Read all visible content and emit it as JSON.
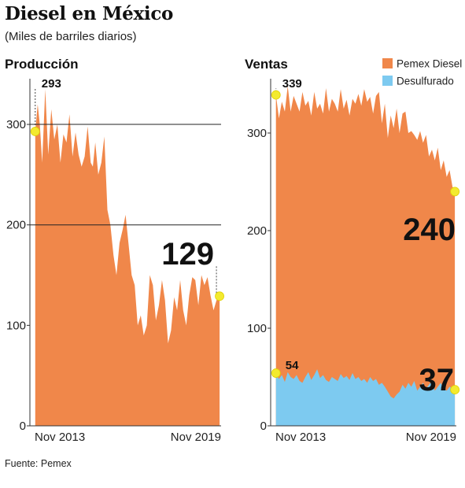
{
  "header": {
    "title": "Diesel en México",
    "subtitle": "(Miles de barriles diarios)"
  },
  "footer": {
    "source": "Fuente: Pemex"
  },
  "colors": {
    "orange": "#f0874a",
    "blue": "#7dcaf0",
    "marker": "#f3ea2f"
  },
  "chart_data": [
    {
      "type": "area",
      "title": "Producción",
      "ylim": [
        0,
        340
      ],
      "yticks": [
        0,
        100,
        200,
        300
      ],
      "xlim": [
        2013.7,
        2019.85
      ],
      "xtick_labels": [
        {
          "x": 2013.87,
          "label": "Nov 2013"
        },
        {
          "x": 2019.87,
          "label": "Nov 2019"
        }
      ],
      "grid": [
        200,
        300
      ],
      "series": [
        {
          "color": "#f0874a",
          "x": [
            2013.72,
            2013.8,
            2013.87,
            2013.95,
            2014.05,
            2014.15,
            2014.25,
            2014.35,
            2014.45,
            2014.55,
            2014.65,
            2014.75,
            2014.85,
            2014.95,
            2015.05,
            2015.15,
            2015.25,
            2015.35,
            2015.45,
            2015.55,
            2015.62,
            2015.7,
            2015.8,
            2015.9,
            2016.0,
            2016.1,
            2016.2,
            2016.3,
            2016.4,
            2016.5,
            2016.6,
            2016.7,
            2016.8,
            2016.9,
            2017.0,
            2017.1,
            2017.2,
            2017.3,
            2017.4,
            2017.5,
            2017.6,
            2017.7,
            2017.8,
            2017.9,
            2018.0,
            2018.1,
            2018.2,
            2018.3,
            2018.4,
            2018.5,
            2018.6,
            2018.7,
            2018.8,
            2018.9,
            2019.0,
            2019.1,
            2019.2,
            2019.3,
            2019.4,
            2019.5,
            2019.6,
            2019.7,
            2019.8
          ],
          "values": [
            293,
            320,
            300,
            262,
            335,
            270,
            315,
            285,
            300,
            262,
            290,
            282,
            310,
            268,
            292,
            270,
            258,
            268,
            298,
            262,
            258,
            282,
            250,
            262,
            288,
            215,
            200,
            170,
            150,
            182,
            195,
            210,
            180,
            150,
            140,
            100,
            110,
            90,
            100,
            150,
            140,
            105,
            120,
            145,
            125,
            82,
            95,
            128,
            115,
            145,
            115,
            100,
            130,
            148,
            145,
            120,
            150,
            140,
            148,
            130,
            115,
            125,
            129
          ]
        }
      ],
      "annotations": [
        {
          "x": 2013.72,
          "y": 293,
          "label": "293",
          "size": "small"
        },
        {
          "x": 2019.8,
          "y": 129,
          "label": "129",
          "size": "big"
        }
      ]
    },
    {
      "type": "area",
      "title": "Ventas",
      "ylim": [
        0,
        350
      ],
      "yticks": [
        0,
        100,
        200,
        300
      ],
      "xlim": [
        2013.7,
        2019.85
      ],
      "xtick_labels": [
        {
          "x": 2013.87,
          "label": "Nov 2013"
        },
        {
          "x": 2019.87,
          "label": "Nov 2019"
        }
      ],
      "legend": {
        "position": "top-right"
      },
      "series": [
        {
          "name": "Pemex Diesel",
          "color": "#f0874a",
          "x": [
            2013.72,
            2013.82,
            2013.92,
            2014.02,
            2014.12,
            2014.22,
            2014.32,
            2014.42,
            2014.52,
            2014.62,
            2014.72,
            2014.82,
            2014.92,
            2015.02,
            2015.12,
            2015.22,
            2015.32,
            2015.42,
            2015.52,
            2015.62,
            2015.72,
            2015.82,
            2015.92,
            2016.02,
            2016.12,
            2016.22,
            2016.32,
            2016.42,
            2016.52,
            2016.62,
            2016.72,
            2016.82,
            2016.92,
            2017.02,
            2017.12,
            2017.22,
            2017.32,
            2017.42,
            2017.52,
            2017.62,
            2017.72,
            2017.82,
            2017.92,
            2018.02,
            2018.12,
            2018.22,
            2018.32,
            2018.42,
            2018.52,
            2018.62,
            2018.72,
            2018.82,
            2018.92,
            2019.02,
            2019.12,
            2019.22,
            2019.32,
            2019.42,
            2019.52,
            2019.62,
            2019.72,
            2019.8
          ],
          "values": [
            339,
            315,
            332,
            322,
            348,
            322,
            338,
            330,
            322,
            342,
            328,
            333,
            318,
            342,
            325,
            330,
            320,
            346,
            322,
            335,
            330,
            322,
            345,
            325,
            334,
            318,
            335,
            330,
            340,
            328,
            345,
            332,
            337,
            320,
            338,
            342,
            310,
            330,
            295,
            318,
            305,
            325,
            300,
            320,
            322,
            300,
            302,
            298,
            293,
            302,
            290,
            298,
            276,
            283,
            272,
            285,
            262,
            272,
            255,
            262,
            245,
            240
          ]
        },
        {
          "name": "Desulfurado",
          "color": "#7dcaf0",
          "x": [
            2013.72,
            2013.82,
            2013.92,
            2014.02,
            2014.12,
            2014.22,
            2014.32,
            2014.42,
            2014.52,
            2014.62,
            2014.72,
            2014.82,
            2014.92,
            2015.02,
            2015.12,
            2015.22,
            2015.32,
            2015.42,
            2015.52,
            2015.62,
            2015.72,
            2015.82,
            2015.92,
            2016.02,
            2016.12,
            2016.22,
            2016.32,
            2016.42,
            2016.52,
            2016.62,
            2016.72,
            2016.82,
            2016.92,
            2017.02,
            2017.12,
            2017.22,
            2017.32,
            2017.42,
            2017.52,
            2017.62,
            2017.72,
            2017.82,
            2017.92,
            2018.02,
            2018.12,
            2018.22,
            2018.32,
            2018.42,
            2018.52,
            2018.62,
            2018.72,
            2018.82,
            2018.92,
            2019.02,
            2019.12,
            2019.22,
            2019.32,
            2019.42,
            2019.52,
            2019.62,
            2019.72,
            2019.8
          ],
          "values": [
            54,
            48,
            52,
            45,
            55,
            50,
            48,
            52,
            46,
            44,
            50,
            55,
            47,
            52,
            58,
            49,
            52,
            47,
            45,
            50,
            48,
            46,
            53,
            49,
            51,
            47,
            54,
            48,
            50,
            46,
            48,
            44,
            50,
            46,
            48,
            42,
            44,
            40,
            35,
            30,
            28,
            32,
            35,
            42,
            38,
            44,
            40,
            46,
            36,
            40,
            44,
            38,
            42,
            46,
            36,
            40,
            44,
            38,
            36,
            40,
            38,
            37
          ]
        }
      ],
      "annotations": [
        {
          "x": 2013.72,
          "y": 339,
          "label": "339",
          "size": "small"
        },
        {
          "x": 2019.8,
          "y": 240,
          "label": "240",
          "size": "big"
        },
        {
          "x": 2013.72,
          "y": 54,
          "label": "54",
          "size": "small"
        },
        {
          "x": 2019.8,
          "y": 37,
          "label": "37",
          "size": "big"
        }
      ]
    }
  ]
}
